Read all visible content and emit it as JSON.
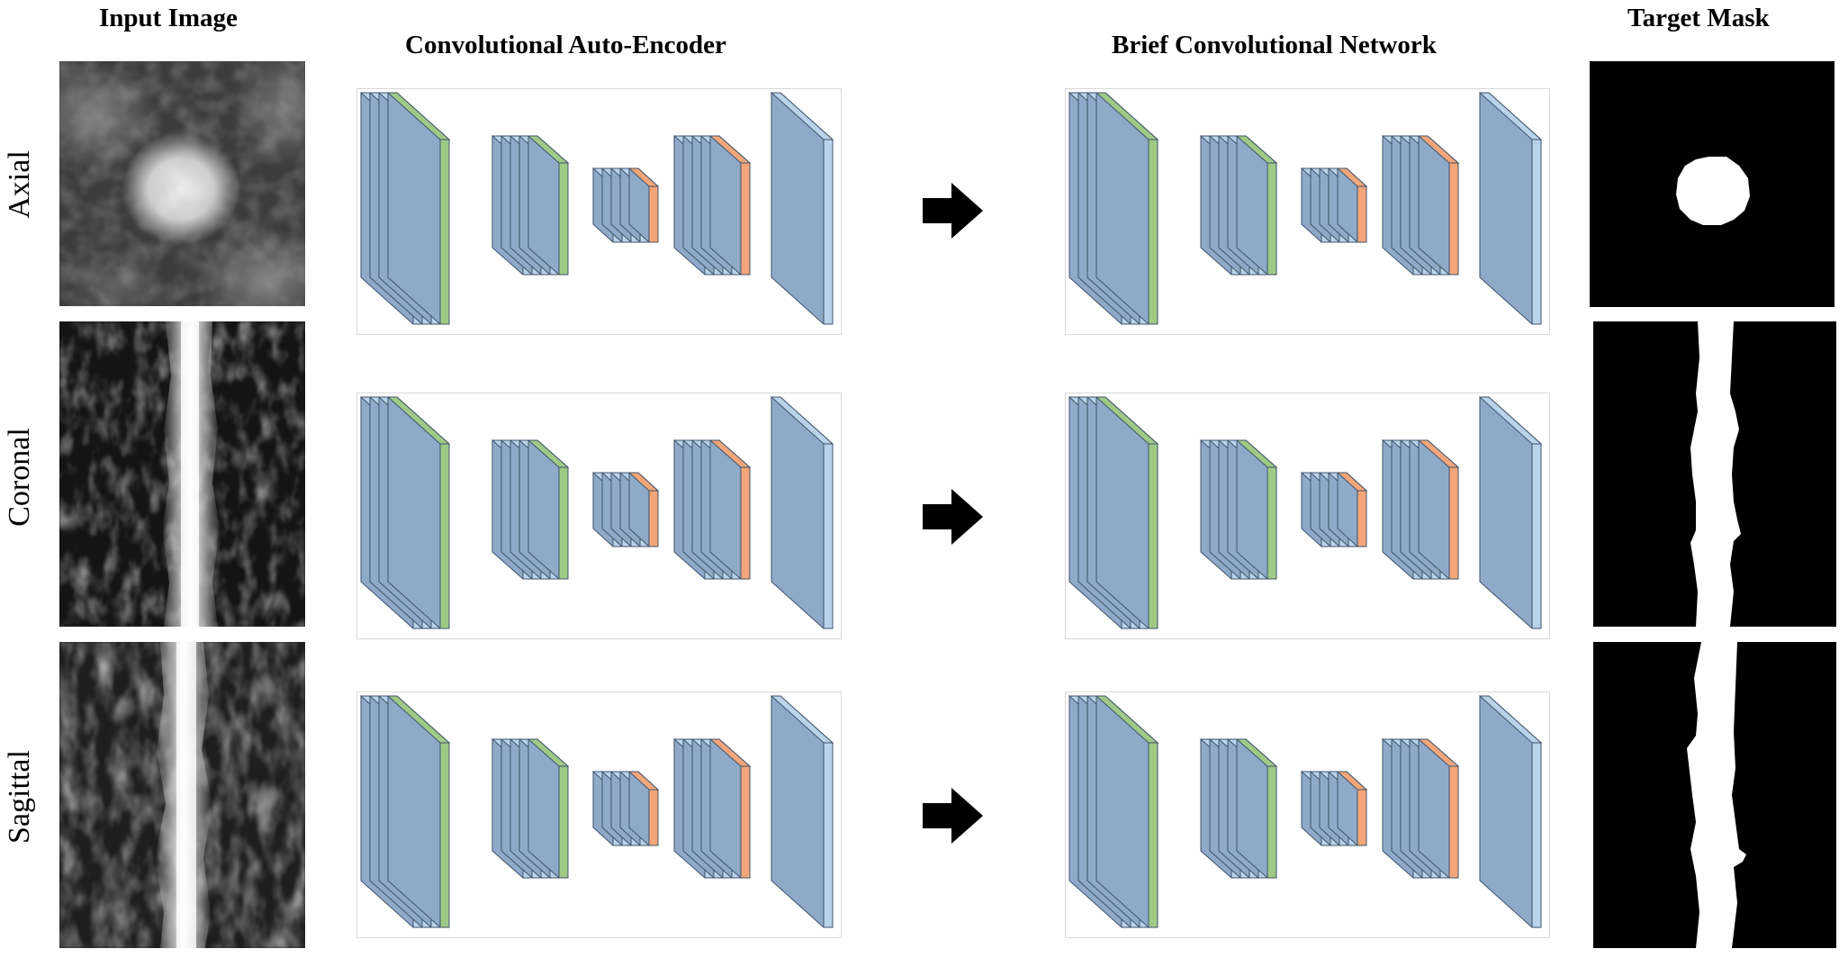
{
  "headers": {
    "input": "Input Image",
    "cae": "Convolutional Auto-Encoder",
    "bcn": "Brief Convolutional Network",
    "target": "Target Mask"
  },
  "rows": [
    "Axial",
    "Coronal",
    "Sagittal"
  ],
  "colors": {
    "layer_blue": "#8faac9",
    "layer_blue_light": "#b9d3ea",
    "layer_green": "#9fca86",
    "layer_orange": "#f3a679",
    "outline": "#3f536b",
    "arrow": "#000000"
  },
  "network": {
    "blocks": [
      {
        "role": "input",
        "slices": [
          "blue",
          "blue",
          "blue",
          "green"
        ]
      },
      {
        "role": "encoder",
        "slices": [
          "blue",
          "blue",
          "blue",
          "blue",
          "green"
        ]
      },
      {
        "role": "bottleneck",
        "slices": [
          "blue",
          "blue",
          "blue",
          "blue",
          "orange"
        ]
      },
      {
        "role": "decoder",
        "slices": [
          "blue",
          "blue",
          "blue",
          "blue",
          "orange"
        ]
      },
      {
        "role": "output",
        "slices": [
          "blue"
        ]
      }
    ]
  }
}
